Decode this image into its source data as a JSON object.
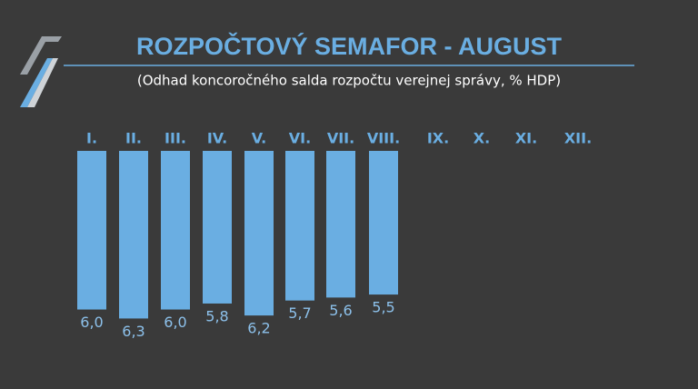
{
  "chart_data": {
    "type": "bar",
    "title": "ROZPOČTOVÝ SEMAFOR - AUGUST",
    "subtitle": "(Odhad koncoročného salda rozpočtu verejnej správy, % HDP)",
    "categories": [
      "I.",
      "II.",
      "III.",
      "IV.",
      "V.",
      "VI.",
      "VII.",
      "VIII.",
      "IX.",
      "X.",
      "XI.",
      "XII."
    ],
    "values": [
      6.0,
      6.3,
      6.0,
      5.8,
      6.2,
      5.7,
      5.6,
      5.5,
      null,
      null,
      null,
      null
    ],
    "value_labels": [
      "6,0",
      "6,3",
      "6,0",
      "5,8",
      "6,2",
      "5,7",
      "5,6",
      "5,5",
      null,
      null,
      null,
      null
    ],
    "color": "#6aaee2",
    "ylim": [
      0.7,
      6.5
    ],
    "inverted": true
  }
}
